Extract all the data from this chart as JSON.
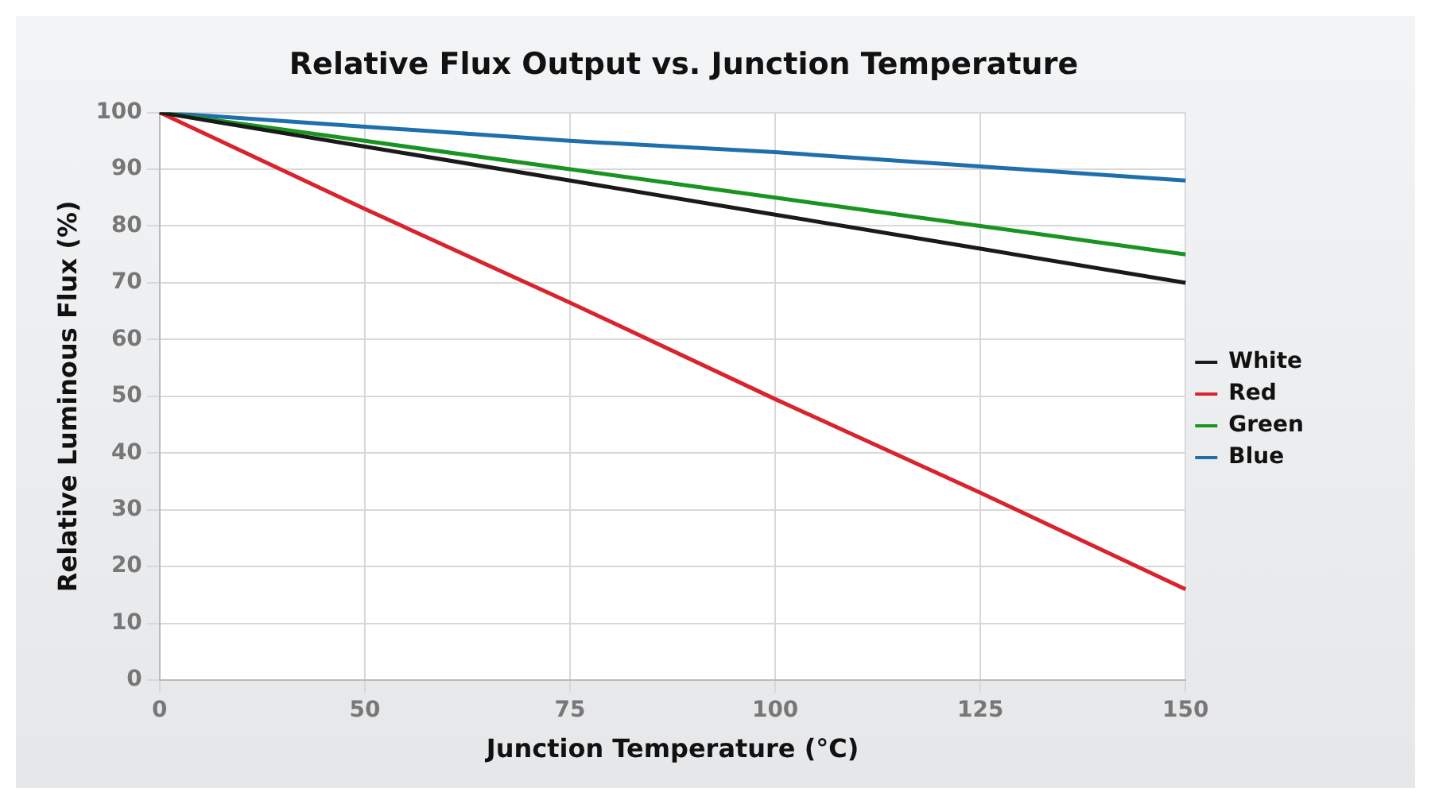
{
  "chart_data": {
    "type": "line",
    "title": "Relative Flux Output vs. Junction Temperature",
    "xlabel": "Junction Temperature (°C)",
    "ylabel": "Relative Luminous Flux (%)",
    "categories": [
      "0",
      "50",
      "75",
      "100",
      "125",
      "150"
    ],
    "series": [
      {
        "name": "White",
        "color": "#1a1a1a",
        "values": [
          100,
          94,
          88,
          82,
          76,
          70
        ]
      },
      {
        "name": "Red",
        "color": "#d9232e",
        "values": [
          100,
          83,
          66.5,
          49.5,
          33,
          16
        ]
      },
      {
        "name": "Green",
        "color": "#1a9421",
        "values": [
          100,
          95,
          90,
          85,
          80,
          75
        ]
      },
      {
        "name": "Blue",
        "color": "#1f6fad",
        "values": [
          100,
          97.5,
          95,
          93,
          90.5,
          88
        ]
      }
    ],
    "ylim": [
      0,
      100
    ],
    "yticks": [
      0,
      10,
      20,
      30,
      40,
      50,
      60,
      70,
      80,
      90,
      100
    ],
    "grid": true,
    "legend": "right",
    "marker": "none",
    "line_style": "solid"
  }
}
